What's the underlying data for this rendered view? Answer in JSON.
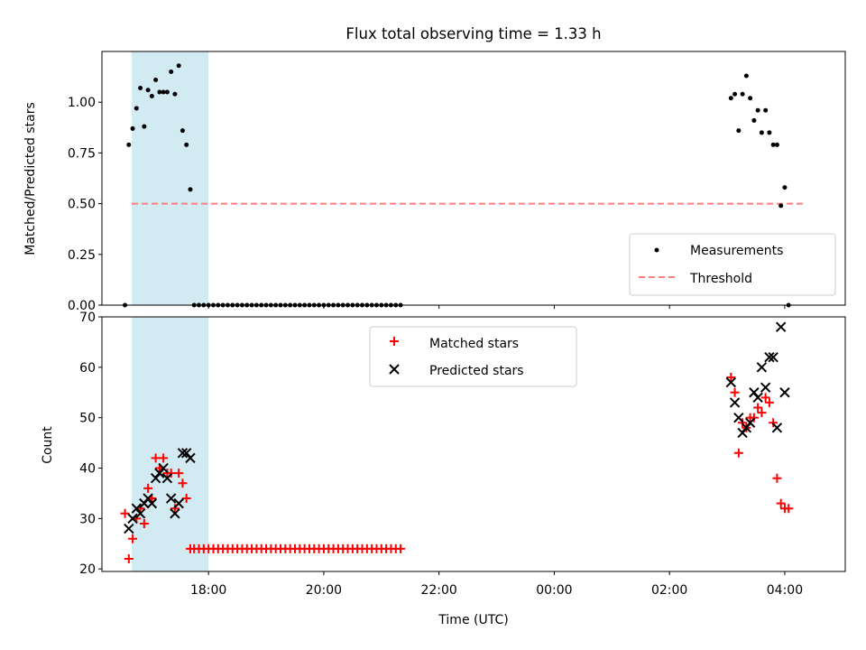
{
  "figure": {
    "title": "Flux total observing time = 1.33 h"
  },
  "chart_data": [
    {
      "type": "scatter",
      "panel": "top",
      "ylabel": "Matched/Predicted stars",
      "ylim": [
        0,
        1.25
      ],
      "yticks": [
        0.0,
        0.25,
        0.5,
        0.75,
        1.0
      ],
      "ytick_labels": [
        "0.00",
        "0.25",
        "0.50",
        "0.75",
        "1.00"
      ],
      "x_tick_labels_shown": false,
      "shaded_span": {
        "start": "16:40",
        "end": "18:00",
        "color": "#add8e6"
      },
      "threshold": {
        "label": "Threshold",
        "value": 0.5,
        "start": "16:40",
        "end": "04:20",
        "color": "#ff7f7f"
      },
      "legend": {
        "position": "lower-right",
        "entries": [
          "Measurements",
          "Threshold"
        ]
      },
      "series": [
        {
          "name": "Measurements",
          "color": "#000000",
          "points": [
            [
              "16:33",
              0.0
            ],
            [
              "16:37",
              0.79
            ],
            [
              "16:41",
              0.87
            ],
            [
              "16:45",
              0.97
            ],
            [
              "16:49",
              1.07
            ],
            [
              "16:53",
              0.88
            ],
            [
              "16:57",
              1.06
            ],
            [
              "17:01",
              1.03
            ],
            [
              "17:05",
              1.11
            ],
            [
              "17:09",
              1.05
            ],
            [
              "17:13",
              1.05
            ],
            [
              "17:17",
              1.05
            ],
            [
              "17:21",
              1.15
            ],
            [
              "17:25",
              1.04
            ],
            [
              "17:29",
              1.18
            ],
            [
              "17:33",
              0.86
            ],
            [
              "17:37",
              0.79
            ],
            [
              "17:41",
              0.57
            ],
            [
              "17:45",
              0.0
            ],
            [
              "17:50",
              0.0
            ],
            [
              "17:55",
              0.0
            ],
            [
              "18:00",
              0.0
            ],
            [
              "18:05",
              0.0
            ],
            [
              "18:10",
              0.0
            ],
            [
              "18:15",
              0.0
            ],
            [
              "18:20",
              0.0
            ],
            [
              "18:25",
              0.0
            ],
            [
              "18:30",
              0.0
            ],
            [
              "18:35",
              0.0
            ],
            [
              "18:40",
              0.0
            ],
            [
              "18:45",
              0.0
            ],
            [
              "18:50",
              0.0
            ],
            [
              "18:55",
              0.0
            ],
            [
              "19:00",
              0.0
            ],
            [
              "19:05",
              0.0
            ],
            [
              "19:10",
              0.0
            ],
            [
              "19:15",
              0.0
            ],
            [
              "19:20",
              0.0
            ],
            [
              "19:25",
              0.0
            ],
            [
              "19:30",
              0.0
            ],
            [
              "19:35",
              0.0
            ],
            [
              "19:40",
              0.0
            ],
            [
              "19:45",
              0.0
            ],
            [
              "19:50",
              0.0
            ],
            [
              "19:55",
              0.0
            ],
            [
              "20:00",
              0.0
            ],
            [
              "20:05",
              0.0
            ],
            [
              "20:10",
              0.0
            ],
            [
              "20:15",
              0.0
            ],
            [
              "20:20",
              0.0
            ],
            [
              "20:25",
              0.0
            ],
            [
              "20:30",
              0.0
            ],
            [
              "20:35",
              0.0
            ],
            [
              "20:40",
              0.0
            ],
            [
              "20:45",
              0.0
            ],
            [
              "20:50",
              0.0
            ],
            [
              "20:55",
              0.0
            ],
            [
              "21:00",
              0.0
            ],
            [
              "21:05",
              0.0
            ],
            [
              "21:10",
              0.0
            ],
            [
              "21:15",
              0.0
            ],
            [
              "21:20",
              0.0
            ],
            [
              "03:04",
              1.02
            ],
            [
              "03:08",
              1.04
            ],
            [
              "03:12",
              0.86
            ],
            [
              "03:16",
              1.04
            ],
            [
              "03:20",
              1.13
            ],
            [
              "03:24",
              1.02
            ],
            [
              "03:28",
              0.91
            ],
            [
              "03:32",
              0.96
            ],
            [
              "03:36",
              0.85
            ],
            [
              "03:40",
              0.96
            ],
            [
              "03:44",
              0.85
            ],
            [
              "03:48",
              0.79
            ],
            [
              "03:52",
              0.79
            ],
            [
              "03:56",
              0.49
            ],
            [
              "04:00",
              0.58
            ],
            [
              "04:04",
              0.0
            ]
          ]
        }
      ]
    },
    {
      "type": "scatter",
      "panel": "bottom",
      "xlabel": "Time (UTC)",
      "ylabel": "Count",
      "ylim": [
        19.5,
        70
      ],
      "yticks": [
        20,
        30,
        40,
        50,
        60,
        70
      ],
      "ytick_labels": [
        "20",
        "30",
        "40",
        "50",
        "60",
        "70"
      ],
      "xticks": [
        "18:00",
        "20:00",
        "22:00",
        "00:00",
        "02:00",
        "04:00"
      ],
      "shaded_span": {
        "start": "16:40",
        "end": "18:00",
        "color": "#add8e6"
      },
      "legend": {
        "position": "top-center",
        "entries": [
          "Matched stars",
          "Predicted stars"
        ]
      },
      "series": [
        {
          "name": "Matched stars",
          "marker": "plus",
          "color": "#ff0000",
          "points": [
            [
              "16:33",
              31
            ],
            [
              "16:37",
              22
            ],
            [
              "16:41",
              26
            ],
            [
              "16:45",
              30
            ],
            [
              "16:49",
              32
            ],
            [
              "16:53",
              29
            ],
            [
              "16:57",
              36
            ],
            [
              "17:01",
              34
            ],
            [
              "17:05",
              42
            ],
            [
              "17:09",
              40
            ],
            [
              "17:13",
              42
            ],
            [
              "17:17",
              39
            ],
            [
              "17:21",
              39
            ],
            [
              "17:25",
              32
            ],
            [
              "17:29",
              39
            ],
            [
              "17:33",
              37
            ],
            [
              "17:37",
              34
            ],
            [
              "17:41",
              24
            ],
            [
              "17:45",
              24
            ],
            [
              "17:50",
              24
            ],
            [
              "17:55",
              24
            ],
            [
              "18:00",
              24
            ],
            [
              "18:05",
              24
            ],
            [
              "18:10",
              24
            ],
            [
              "18:15",
              24
            ],
            [
              "18:20",
              24
            ],
            [
              "18:25",
              24
            ],
            [
              "18:30",
              24
            ],
            [
              "18:35",
              24
            ],
            [
              "18:40",
              24
            ],
            [
              "18:45",
              24
            ],
            [
              "18:50",
              24
            ],
            [
              "18:55",
              24
            ],
            [
              "19:00",
              24
            ],
            [
              "19:05",
              24
            ],
            [
              "19:10",
              24
            ],
            [
              "19:15",
              24
            ],
            [
              "19:20",
              24
            ],
            [
              "19:25",
              24
            ],
            [
              "19:30",
              24
            ],
            [
              "19:35",
              24
            ],
            [
              "19:40",
              24
            ],
            [
              "19:45",
              24
            ],
            [
              "19:50",
              24
            ],
            [
              "19:55",
              24
            ],
            [
              "20:00",
              24
            ],
            [
              "20:05",
              24
            ],
            [
              "20:10",
              24
            ],
            [
              "20:15",
              24
            ],
            [
              "20:20",
              24
            ],
            [
              "20:25",
              24
            ],
            [
              "20:30",
              24
            ],
            [
              "20:35",
              24
            ],
            [
              "20:40",
              24
            ],
            [
              "20:45",
              24
            ],
            [
              "20:50",
              24
            ],
            [
              "20:55",
              24
            ],
            [
              "21:00",
              24
            ],
            [
              "21:05",
              24
            ],
            [
              "21:10",
              24
            ],
            [
              "21:15",
              24
            ],
            [
              "21:20",
              24
            ],
            [
              "03:04",
              58
            ],
            [
              "03:08",
              55
            ],
            [
              "03:12",
              43
            ],
            [
              "03:16",
              49
            ],
            [
              "03:20",
              48
            ],
            [
              "03:24",
              50
            ],
            [
              "03:28",
              50
            ],
            [
              "03:32",
              52
            ],
            [
              "03:36",
              51
            ],
            [
              "03:40",
              54
            ],
            [
              "03:44",
              53
            ],
            [
              "03:48",
              49
            ],
            [
              "03:52",
              38
            ],
            [
              "03:56",
              33
            ],
            [
              "04:00",
              32
            ],
            [
              "04:04",
              32
            ]
          ]
        },
        {
          "name": "Predicted stars",
          "marker": "x",
          "color": "#000000",
          "points": [
            [
              "16:37",
              28
            ],
            [
              "16:41",
              30
            ],
            [
              "16:45",
              32
            ],
            [
              "16:49",
              31
            ],
            [
              "16:53",
              33
            ],
            [
              "16:57",
              34
            ],
            [
              "17:01",
              33
            ],
            [
              "17:05",
              38
            ],
            [
              "17:09",
              39
            ],
            [
              "17:13",
              40
            ],
            [
              "17:17",
              38
            ],
            [
              "17:21",
              34
            ],
            [
              "17:25",
              31
            ],
            [
              "17:29",
              33
            ],
            [
              "17:33",
              43
            ],
            [
              "17:37",
              43
            ],
            [
              "17:41",
              42
            ],
            [
              "03:04",
              57
            ],
            [
              "03:08",
              53
            ],
            [
              "03:12",
              50
            ],
            [
              "03:16",
              47
            ],
            [
              "03:20",
              48
            ],
            [
              "03:24",
              49
            ],
            [
              "03:28",
              55
            ],
            [
              "03:32",
              54
            ],
            [
              "03:36",
              60
            ],
            [
              "03:40",
              56
            ],
            [
              "03:44",
              62
            ],
            [
              "03:48",
              62
            ],
            [
              "03:52",
              48
            ],
            [
              "03:56",
              68
            ],
            [
              "04:00",
              55
            ]
          ]
        }
      ]
    }
  ]
}
